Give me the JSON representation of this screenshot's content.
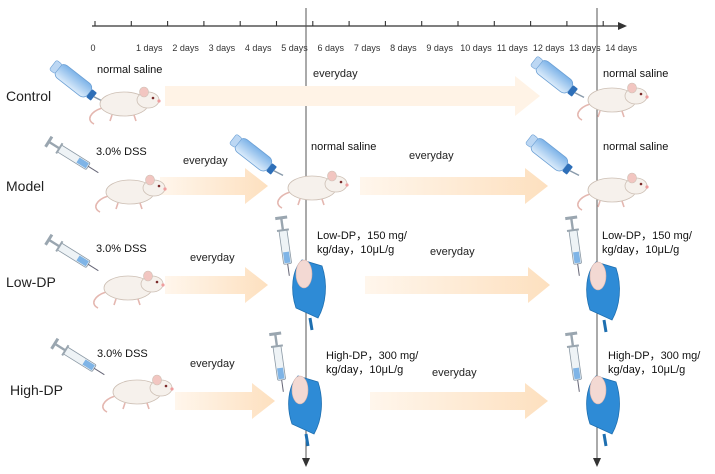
{
  "timeline": {
    "ticks": [
      "0",
      "1 days",
      "2 days",
      "3 days",
      "4 days",
      "5 days",
      "6 days",
      "7 days",
      "8 days",
      "9 days",
      "10 days",
      "11 days",
      "12 days",
      "13 days",
      "14 days"
    ]
  },
  "groups": [
    {
      "name": "Control",
      "phase1_agent": "normal saline",
      "phase1_freq": "everyday",
      "end_agent": "normal saline"
    },
    {
      "name": "Model",
      "phase1_agent": "3.0% DSS",
      "phase1_freq": "everyday",
      "mid_agent": "normal saline",
      "phase2_freq": "everyday",
      "end_agent": "normal saline"
    },
    {
      "name": "Low-DP",
      "phase1_agent": "3.0% DSS",
      "phase1_freq": "everyday",
      "mid_agent_line1": "Low-DP，150 mg/",
      "mid_agent_line2": "kg/day，10μL/g",
      "phase2_freq": "everyday",
      "end_agent_line1": "Low-DP，150 mg/",
      "end_agent_line2": "kg/day，10μL/g"
    },
    {
      "name": "High-DP",
      "phase1_agent": "3.0% DSS",
      "phase1_freq": "everyday",
      "mid_agent_line1": "High-DP，300 mg/",
      "mid_agent_line2": "kg/day，10μL/g",
      "phase2_freq": "everyday",
      "end_agent_line1": "High-DP，300 mg/",
      "end_agent_line2": "kg/day，10μL/g"
    }
  ],
  "colors": {
    "arrow": "#fde3c6",
    "arrow_light": "#fff1e2",
    "bottle": "#6aa6e3",
    "glove": "#2e8bd6",
    "mouse": "#f3ece6"
  }
}
